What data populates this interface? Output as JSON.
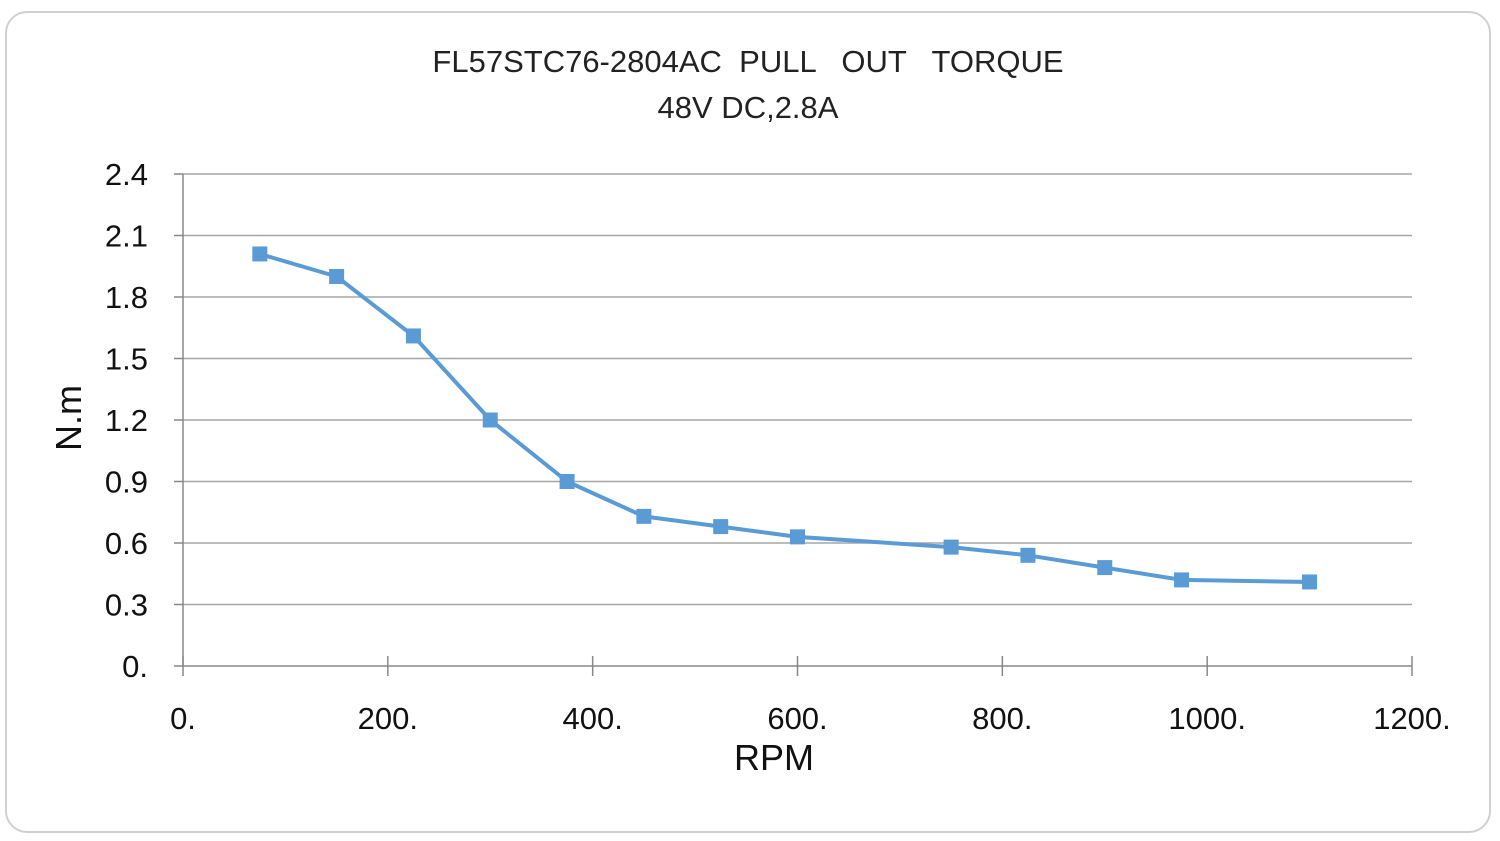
{
  "chart_data": {
    "type": "line",
    "title": "FL57STC76-2804AC  PULL   OUT   TORQUE",
    "subtitle": "48V DC,2.8A",
    "xlabel": "RPM",
    "ylabel": "N.m",
    "xlim": [
      0,
      1200
    ],
    "ylim": [
      0,
      2.4
    ],
    "xticks": [
      0,
      200,
      400,
      600,
      800,
      1000,
      1200
    ],
    "yticks": [
      0,
      0.3,
      0.6,
      0.9,
      1.2,
      1.5,
      1.8,
      2.1,
      2.4
    ],
    "xtick_labels": [
      "0.",
      "200.",
      "400.",
      "600.",
      "800.",
      "1000.",
      "1200."
    ],
    "ytick_labels": [
      "0.",
      "0.3",
      "0.6",
      "0.9",
      "1.2",
      "1.5",
      "1.8",
      "2.1",
      "2.4"
    ],
    "grid": "horizontal",
    "legend": "none",
    "series": [
      {
        "color": "#5b9bd5",
        "marker": "square",
        "x": [
          75,
          150,
          225,
          300,
          375,
          450,
          525,
          600,
          750,
          825,
          900,
          975,
          1100
        ],
        "y": [
          2.01,
          1.9,
          1.61,
          1.2,
          0.9,
          0.73,
          0.68,
          0.63,
          0.58,
          0.54,
          0.48,
          0.42,
          0.41
        ]
      }
    ]
  }
}
